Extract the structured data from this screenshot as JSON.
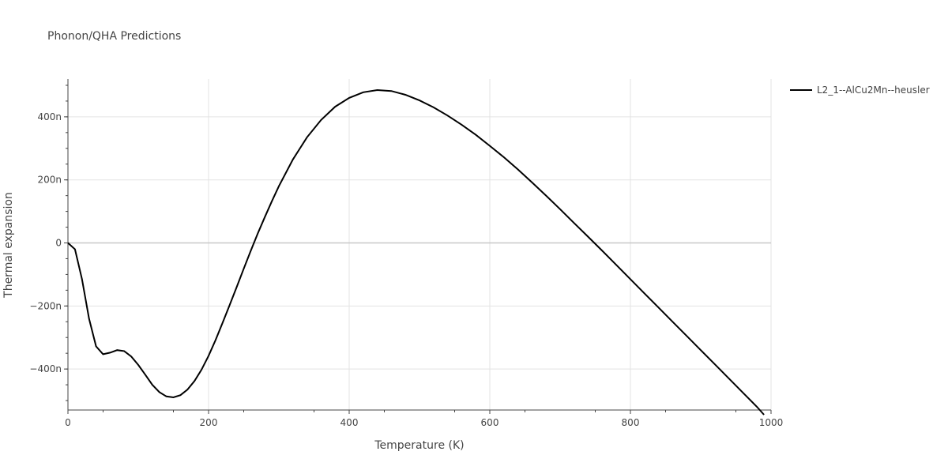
{
  "chart_data": {
    "type": "line",
    "title": "Phonon/QHA Predictions",
    "xlabel": "Temperature (K)",
    "ylabel": "Thermal expansion",
    "xlim": [
      0,
      1000
    ],
    "ylim": [
      -5.3e-07,
      5.2e-07
    ],
    "x_ticks": [
      {
        "value": 0,
        "label": "0"
      },
      {
        "value": 200,
        "label": "200"
      },
      {
        "value": 400,
        "label": "400"
      },
      {
        "value": 600,
        "label": "600"
      },
      {
        "value": 800,
        "label": "800"
      },
      {
        "value": 1000,
        "label": "1000"
      }
    ],
    "y_ticks": [
      {
        "value": -4e-07,
        "label": "−400n"
      },
      {
        "value": -2e-07,
        "label": "−200n"
      },
      {
        "value": 0,
        "label": "0"
      },
      {
        "value": 2e-07,
        "label": "200n"
      },
      {
        "value": 4e-07,
        "label": "400n"
      }
    ],
    "grid": true,
    "legend_position": "top-right",
    "line_color": "#000000",
    "series": [
      {
        "name": "L2_1--AlCu2Mn--heusler",
        "x": [
          0,
          10,
          20,
          30,
          40,
          50,
          60,
          70,
          80,
          90,
          100,
          110,
          120,
          130,
          140,
          150,
          160,
          170,
          180,
          190,
          200,
          210,
          220,
          230,
          240,
          250,
          260,
          270,
          280,
          290,
          300,
          320,
          340,
          360,
          380,
          400,
          420,
          440,
          460,
          480,
          500,
          520,
          540,
          560,
          580,
          600,
          620,
          640,
          660,
          680,
          700,
          720,
          740,
          760,
          780,
          800,
          820,
          840,
          860,
          880,
          900,
          920,
          940,
          960,
          980,
          990
        ],
        "y": [
          0,
          -2e-08,
          -1.15e-07,
          -2.4e-07,
          -3.28e-07,
          -3.53e-07,
          -3.48e-07,
          -3.4e-07,
          -3.43e-07,
          -3.6e-07,
          -3.87e-07,
          -4.18e-07,
          -4.5e-07,
          -4.73e-07,
          -4.87e-07,
          -4.9e-07,
          -4.83e-07,
          -4.65e-07,
          -4.38e-07,
          -4.02e-07,
          -3.58e-07,
          -3.08e-07,
          -2.53e-07,
          -1.97e-07,
          -1.4e-07,
          -8.2e-08,
          -2.5e-08,
          3e-08,
          8.2e-08,
          1.32e-07,
          1.8e-07,
          2.65e-07,
          3.35e-07,
          3.9e-07,
          4.32e-07,
          4.6e-07,
          4.78e-07,
          4.85e-07,
          4.82e-07,
          4.7e-07,
          4.52e-07,
          4.3e-07,
          4.04e-07,
          3.75e-07,
          3.43e-07,
          3.08e-07,
          2.72e-07,
          2.33e-07,
          1.92e-07,
          1.5e-07,
          1.07e-07,
          6.3e-08,
          1.9e-08,
          -2.5e-08,
          -7e-08,
          -1.15e-07,
          -1.6e-07,
          -2.05e-07,
          -2.5e-07,
          -2.95e-07,
          -3.4e-07,
          -3.85e-07,
          -4.3e-07,
          -4.75e-07,
          -5.2e-07,
          -5.45e-07
        ]
      }
    ]
  }
}
